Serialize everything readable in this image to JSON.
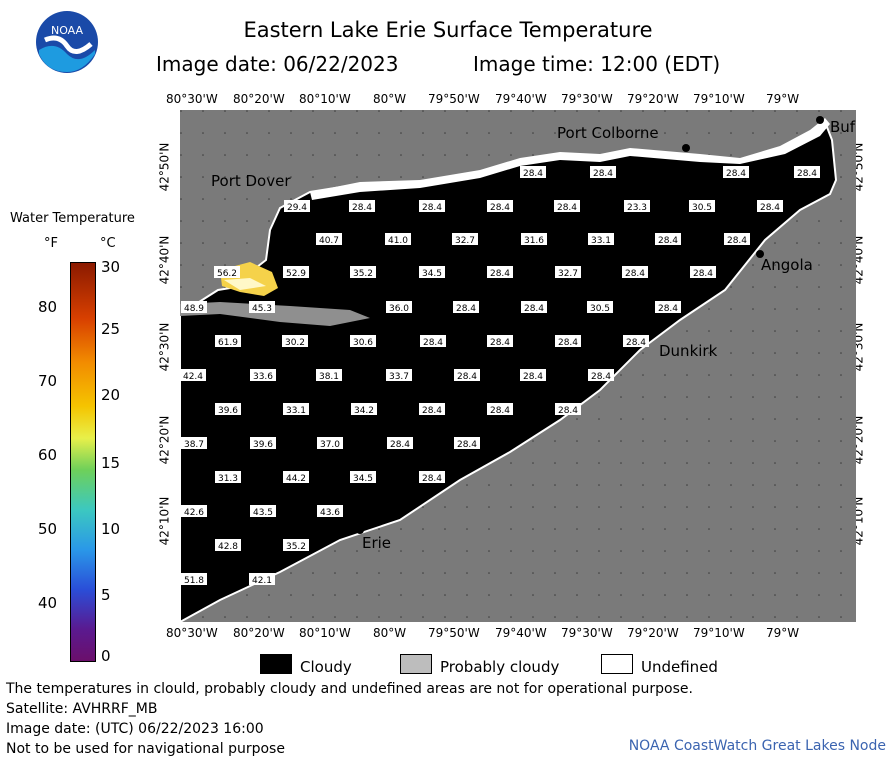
{
  "header": {
    "title": "Eastern Lake Erie Surface Temperature",
    "image_date": "Image date: 06/22/2023",
    "image_time": "Image time: 12:00 (EDT)"
  },
  "logo": {
    "text": "NOAA"
  },
  "map": {
    "lon_labels": [
      "80°30'W",
      "80°20'W",
      "80°10'W",
      "80°W",
      "79°50'W",
      "79°40'W",
      "79°30'W",
      "79°20'W",
      "79°10'W",
      "79°W"
    ],
    "lat_labels": [
      "42°50'N",
      "42°40'N",
      "42°30'N",
      "42°20'N",
      "42°10'N"
    ],
    "places": [
      {
        "name": "Port Colborne"
      },
      {
        "name": "Port Dover"
      },
      {
        "name": "Angola"
      },
      {
        "name": "Dunkirk"
      },
      {
        "name": "Erie"
      },
      {
        "name": "Buf"
      }
    ],
    "temperature_labels": [
      "28.4",
      "28.4",
      "28.4",
      "28.4",
      "29.4",
      "28.4",
      "28.4",
      "28.4",
      "28.4",
      "23.3",
      "30.5",
      "28.4",
      "40.7",
      "41.0",
      "32.7",
      "31.6",
      "33.1",
      "28.4",
      "28.4",
      "56.2",
      "52.9",
      "35.2",
      "34.5",
      "28.4",
      "32.7",
      "28.4",
      "28.4",
      "48.9",
      "45.3",
      "36.0",
      "28.4",
      "28.4",
      "30.5",
      "28.4",
      "61.9",
      "30.2",
      "30.6",
      "28.4",
      "28.4",
      "28.4",
      "28.4",
      "42.4",
      "33.6",
      "38.1",
      "33.7",
      "28.4",
      "28.4",
      "28.4",
      "39.6",
      "33.1",
      "34.2",
      "28.4",
      "28.4",
      "28.4",
      "38.7",
      "39.6",
      "37.0",
      "28.4",
      "28.4",
      "31.3",
      "44.2",
      "34.5",
      "28.4",
      "42.6",
      "43.5",
      "43.6",
      "42.8",
      "35.2",
      "51.8",
      "42.1"
    ]
  },
  "legend": {
    "title": "Water Temperature",
    "unit_f": "°F",
    "unit_c": "°C",
    "f_ticks": [
      "80",
      "70",
      "60",
      "50",
      "40"
    ],
    "c_ticks": [
      "30",
      "25",
      "20",
      "15",
      "10",
      "5",
      "0"
    ]
  },
  "key": {
    "cloudy": "Cloudy",
    "probably_cloudy": "Probably cloudy",
    "undefined": "Undefined"
  },
  "footer": {
    "disclaimer": "The temperatures in clould, probably cloudy and undefined areas are not for operational purpose.",
    "satellite": "Satellite: AVHRRF_MB",
    "utc_date": "Image date: (UTC) 06/22/2023  16:00",
    "nav": "Not to be used for navigational purpose",
    "credit": "NOAA CoastWatch Great Lakes Node"
  }
}
